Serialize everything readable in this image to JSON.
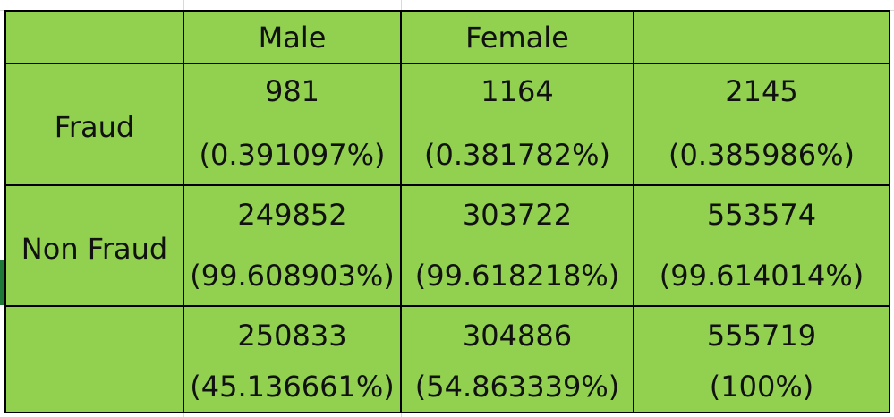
{
  "table": {
    "header": {
      "corner": "",
      "col1": "Male",
      "col2": "Female",
      "col3": ""
    },
    "rows": [
      {
        "label": "Fraud",
        "male_count": "981",
        "male_pct": "(0.391097%)",
        "female_count": "1164",
        "female_pct": "(0.381782%)",
        "total_count": "2145",
        "total_pct": "(0.385986%)"
      },
      {
        "label": "Non Fraud",
        "male_count": "249852",
        "male_pct": "(99.608903%)",
        "female_count": "303722",
        "female_pct": "(99.618218%)",
        "total_count": "553574",
        "total_pct": "(99.614014%)"
      },
      {
        "label": "",
        "male_count": "250833",
        "male_pct": "(45.136661%)",
        "female_count": "304886",
        "female_pct": "(54.863339%)",
        "total_count": "555719",
        "total_pct": "(100%)"
      }
    ]
  },
  "colors": {
    "cell_fill": "#92d050",
    "border": "#000000",
    "text": "#111111"
  }
}
